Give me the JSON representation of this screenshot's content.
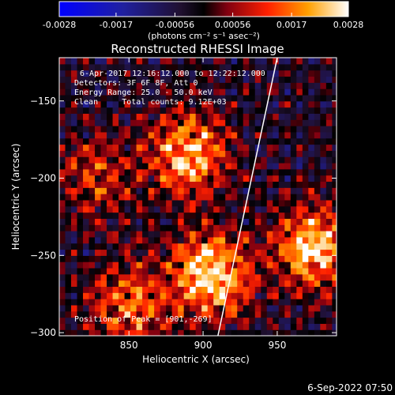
{
  "chart_data": {
    "type": "heatmap",
    "title": "Reconstructed RHESSI Image",
    "xlabel": "Heliocentric X (arcsec)",
    "ylabel": "Heliocentric Y (arcsec)",
    "xlim": [
      803,
      990
    ],
    "ylim": [
      -302,
      -122
    ],
    "x_ticks": [
      850,
      900,
      950
    ],
    "y_ticks": [
      -150,
      -200,
      -250,
      -300
    ],
    "colorbar": {
      "min": -0.0028,
      "max": 0.0028,
      "ticks": [
        {
          "value": -0.0028,
          "label": "-0.0028"
        },
        {
          "value": -0.0017,
          "label": "-0.0017"
        },
        {
          "value": -0.00056,
          "label": "-0.00056"
        },
        {
          "value": 0.00056,
          "label": "0.00056"
        },
        {
          "value": 0.0017,
          "label": "0.0017"
        },
        {
          "value": 0.0028,
          "label": "0.0028"
        }
      ],
      "unit_label": "(photons cm⁻² s⁻¹ asec⁻²)"
    },
    "annotations": {
      "time_range": "6-Apr-2017 12:16:12.000 to 12:22:12.000",
      "detectors": "Detectors: 3F 6F 8F, Att 0",
      "energy_range": "Energy Range: 25.0 - 50.0 keV",
      "clean_counts": "Clean     Total counts: 9.12E+03",
      "peak": "Position of Peak = [901,-269]"
    },
    "sources": [
      {
        "x": 890,
        "y": -185,
        "peak_fraction": 0.85
      },
      {
        "x": 905,
        "y": -262,
        "peak_fraction": 1.0
      },
      {
        "x": 975,
        "y": -245,
        "peak_fraction": 0.9
      },
      {
        "x": 850,
        "y": -282,
        "peak_fraction": 0.6
      },
      {
        "x": 828,
        "y": -200,
        "peak_fraction": 0.4
      }
    ],
    "limb_line": {
      "points": [
        [
          910,
          -302
        ],
        [
          950,
          -122
        ]
      ]
    }
  },
  "footer": {
    "timestamp": "6-Sep-2022 07:50"
  }
}
